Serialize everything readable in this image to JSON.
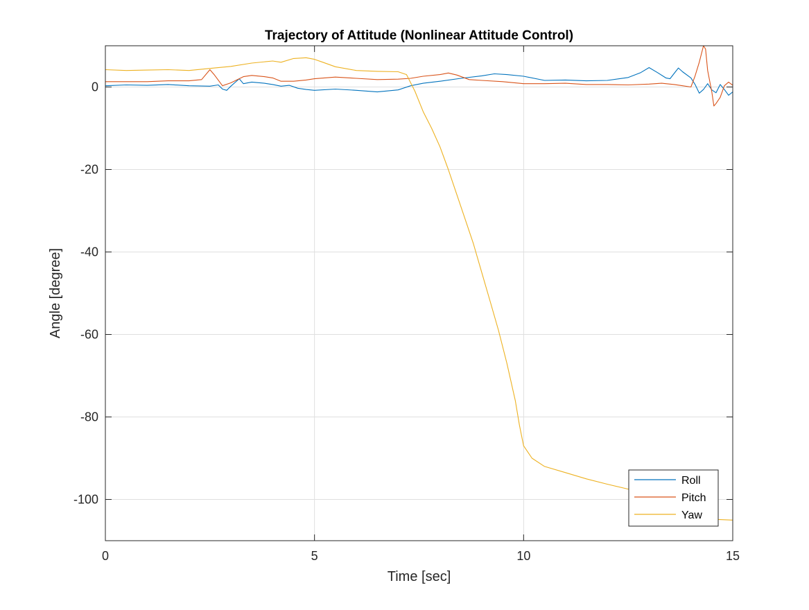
{
  "chart_data": {
    "type": "line",
    "title": "Trajectory of Attitude (Nonlinear Attitude Control)",
    "xlabel": "Time [sec]",
    "ylabel": "Angle [degree]",
    "xlim": [
      0,
      15
    ],
    "ylim": [
      -110,
      10
    ],
    "xticks": [
      0,
      5,
      10,
      15
    ],
    "yticks": [
      -100,
      -80,
      -60,
      -40,
      -20,
      0
    ],
    "grid": true,
    "legend_position": "bottom-right",
    "series": [
      {
        "name": "Roll",
        "color": "#0072BD",
        "points": [
          [
            0,
            0.3
          ],
          [
            0.5,
            0.5
          ],
          [
            1,
            0.4
          ],
          [
            1.5,
            0.6
          ],
          [
            2,
            0.3
          ],
          [
            2.5,
            0.2
          ],
          [
            2.7,
            0.5
          ],
          [
            2.8,
            -0.5
          ],
          [
            2.9,
            -0.8
          ],
          [
            3,
            0.2
          ],
          [
            3.2,
            2.0
          ],
          [
            3.3,
            0.8
          ],
          [
            3.5,
            1.2
          ],
          [
            3.8,
            0.9
          ],
          [
            4,
            0.6
          ],
          [
            4.2,
            0.2
          ],
          [
            4.4,
            0.4
          ],
          [
            4.6,
            -0.3
          ],
          [
            4.8,
            -0.6
          ],
          [
            5,
            -0.8
          ],
          [
            5.5,
            -0.5
          ],
          [
            6,
            -0.8
          ],
          [
            6.5,
            -1.2
          ],
          [
            7,
            -0.7
          ],
          [
            7.3,
            0.3
          ],
          [
            7.6,
            0.9
          ],
          [
            8,
            1.4
          ],
          [
            8.5,
            2.1
          ],
          [
            9,
            2.7
          ],
          [
            9.3,
            3.2
          ],
          [
            9.6,
            3.0
          ],
          [
            10,
            2.6
          ],
          [
            10.5,
            1.6
          ],
          [
            11,
            1.7
          ],
          [
            11.5,
            1.5
          ],
          [
            12,
            1.6
          ],
          [
            12.5,
            2.3
          ],
          [
            12.8,
            3.5
          ],
          [
            13,
            4.7
          ],
          [
            13.2,
            3.5
          ],
          [
            13.4,
            2.2
          ],
          [
            13.5,
            2.0
          ],
          [
            13.6,
            3.3
          ],
          [
            13.7,
            4.6
          ],
          [
            13.8,
            3.7
          ],
          [
            14,
            2.2
          ],
          [
            14.1,
            0.6
          ],
          [
            14.2,
            -1.5
          ],
          [
            14.3,
            -0.6
          ],
          [
            14.4,
            0.8
          ],
          [
            14.5,
            -0.7
          ],
          [
            14.6,
            -1.4
          ],
          [
            14.7,
            0.6
          ],
          [
            14.8,
            -0.6
          ],
          [
            14.9,
            -2.0
          ],
          [
            15,
            -1.2
          ]
        ]
      },
      {
        "name": "Pitch",
        "color": "#D95319",
        "points": [
          [
            0,
            1.3
          ],
          [
            0.5,
            1.3
          ],
          [
            1,
            1.3
          ],
          [
            1.5,
            1.5
          ],
          [
            2,
            1.5
          ],
          [
            2.3,
            1.8
          ],
          [
            2.5,
            4.2
          ],
          [
            2.6,
            3.0
          ],
          [
            2.8,
            0.3
          ],
          [
            3,
            1.0
          ],
          [
            3.3,
            2.5
          ],
          [
            3.5,
            2.8
          ],
          [
            3.8,
            2.5
          ],
          [
            4,
            2.2
          ],
          [
            4.2,
            1.4
          ],
          [
            4.5,
            1.4
          ],
          [
            4.8,
            1.7
          ],
          [
            5,
            2.0
          ],
          [
            5.5,
            2.4
          ],
          [
            6,
            2.1
          ],
          [
            6.5,
            1.8
          ],
          [
            7,
            1.9
          ],
          [
            7.3,
            2.1
          ],
          [
            7.6,
            2.6
          ],
          [
            8,
            3.0
          ],
          [
            8.2,
            3.4
          ],
          [
            8.4,
            2.9
          ],
          [
            8.7,
            1.8
          ],
          [
            9,
            1.6
          ],
          [
            9.5,
            1.3
          ],
          [
            10,
            0.8
          ],
          [
            10.5,
            0.8
          ],
          [
            11,
            0.9
          ],
          [
            11.5,
            0.6
          ],
          [
            12,
            0.6
          ],
          [
            12.5,
            0.5
          ],
          [
            13,
            0.7
          ],
          [
            13.3,
            0.9
          ],
          [
            13.6,
            0.6
          ],
          [
            13.8,
            0.3
          ],
          [
            14,
            0.0
          ],
          [
            14.1,
            2.7
          ],
          [
            14.2,
            6.0
          ],
          [
            14.3,
            10.0
          ],
          [
            14.35,
            9.2
          ],
          [
            14.4,
            4.0
          ],
          [
            14.5,
            -1.2
          ],
          [
            14.55,
            -4.6
          ],
          [
            14.6,
            -4.0
          ],
          [
            14.7,
            -2.5
          ],
          [
            14.8,
            0.3
          ],
          [
            14.9,
            1.2
          ],
          [
            15,
            0.4
          ]
        ]
      },
      {
        "name": "Yaw",
        "color": "#EDB120",
        "points": [
          [
            0,
            4.2
          ],
          [
            0.5,
            4.0
          ],
          [
            1,
            4.1
          ],
          [
            1.5,
            4.2
          ],
          [
            2,
            4.0
          ],
          [
            2.5,
            4.5
          ],
          [
            3,
            5.0
          ],
          [
            3.5,
            5.8
          ],
          [
            4,
            6.3
          ],
          [
            4.2,
            6.0
          ],
          [
            4.5,
            6.9
          ],
          [
            4.8,
            7.1
          ],
          [
            5,
            6.7
          ],
          [
            5.2,
            6.0
          ],
          [
            5.5,
            4.9
          ],
          [
            6,
            4.0
          ],
          [
            6.5,
            3.8
          ],
          [
            7,
            3.7
          ],
          [
            7.2,
            3.0
          ],
          [
            7.4,
            -1.0
          ],
          [
            7.6,
            -6.0
          ],
          [
            7.8,
            -10.0
          ],
          [
            8,
            -14.5
          ],
          [
            8.2,
            -20.0
          ],
          [
            8.4,
            -26.0
          ],
          [
            8.6,
            -32.0
          ],
          [
            8.8,
            -38.0
          ],
          [
            9,
            -45.0
          ],
          [
            9.2,
            -52.0
          ],
          [
            9.4,
            -59.0
          ],
          [
            9.6,
            -67.0
          ],
          [
            9.8,
            -76.0
          ],
          [
            9.9,
            -82.0
          ],
          [
            10,
            -87.0
          ],
          [
            10.2,
            -90.0
          ],
          [
            10.5,
            -92.0
          ],
          [
            11,
            -93.5
          ],
          [
            11.5,
            -95.0
          ],
          [
            12,
            -96.3
          ],
          [
            12.5,
            -97.5
          ],
          [
            13,
            -98.8
          ],
          [
            13.5,
            -100.0
          ],
          [
            14,
            -102.0
          ],
          [
            14.2,
            -103.5
          ],
          [
            14.5,
            -104.8
          ],
          [
            15,
            -105.0
          ]
        ]
      }
    ]
  }
}
